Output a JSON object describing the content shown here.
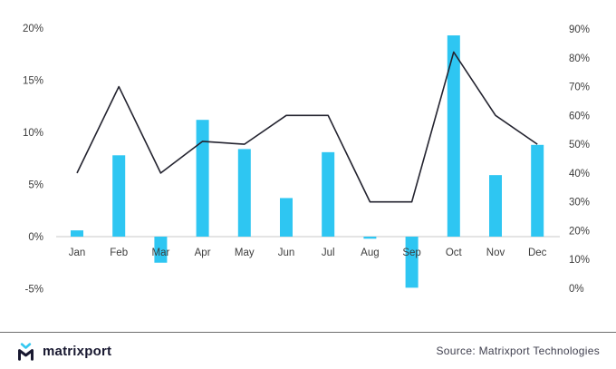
{
  "chart_data": {
    "type": "bar",
    "subtype": "combo-bar-line",
    "categories": [
      "Jan",
      "Feb",
      "Mar",
      "Apr",
      "May",
      "Jun",
      "Jul",
      "Aug",
      "Sep",
      "Oct",
      "Nov",
      "Dec"
    ],
    "series": [
      {
        "name": "monthly-value-bars",
        "type": "bar",
        "axis": "left",
        "values": [
          0.6,
          7.8,
          -2.5,
          11.2,
          8.4,
          3.7,
          8.1,
          -0.2,
          -4.9,
          19.3,
          5.9,
          8.8
        ]
      },
      {
        "name": "trend-line",
        "type": "line",
        "axis": "right",
        "values": [
          40,
          70,
          40,
          51,
          50,
          60,
          60,
          30,
          30,
          82,
          60,
          50
        ]
      }
    ],
    "title": "",
    "xlabel": "",
    "ylabel": "",
    "left_axis": {
      "min": -5,
      "max": 20,
      "tick_values": [
        20,
        15,
        10,
        5,
        0,
        -5
      ],
      "tick_labels": [
        "20%",
        "15%",
        "10%",
        "5%",
        "0%",
        "-5%"
      ]
    },
    "right_axis": {
      "min": 0,
      "max": 90,
      "tick_values": [
        90,
        80,
        70,
        60,
        50,
        40,
        30,
        20,
        10,
        0
      ],
      "tick_labels": [
        "90%",
        "80%",
        "70%",
        "60%",
        "50%",
        "40%",
        "30%",
        "20%",
        "10%",
        "0%"
      ]
    },
    "grid": false,
    "legend": "none"
  },
  "colors": {
    "bar": "#2EC6F2",
    "line": "#23232F",
    "baseline": "#c9c9c9",
    "axis_text": "#3d3d3d",
    "brand_navy": "#181830",
    "brand_cyan": "#35C8F0"
  },
  "footer": {
    "logo_text": "matrixport",
    "source": "Source: Matrixport Technologies"
  }
}
